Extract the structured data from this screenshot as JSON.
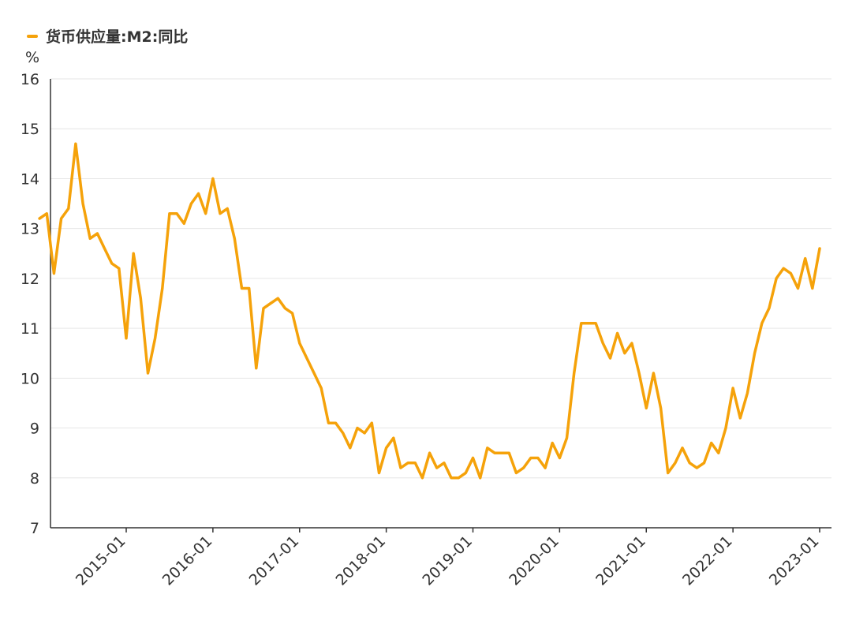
{
  "chart_data": {
    "type": "line",
    "title": "",
    "xlabel": "",
    "ylabel": "%",
    "ylim": [
      7,
      16
    ],
    "y_ticks": [
      7,
      8,
      9,
      10,
      11,
      12,
      13,
      14,
      15,
      16
    ],
    "x_ticks": [
      "2015-01",
      "2016-01",
      "2017-01",
      "2018-01",
      "2019-01",
      "2020-01",
      "2021-01",
      "2022-01",
      "2023-01"
    ],
    "legend_position": "top-left",
    "grid": true,
    "colors": {
      "line": "#f5a20a"
    },
    "series": [
      {
        "name": "货币供应量:M2:同比",
        "x": [
          "2014-01",
          "2014-02",
          "2014-03",
          "2014-04",
          "2014-05",
          "2014-06",
          "2014-07",
          "2014-08",
          "2014-09",
          "2014-10",
          "2014-11",
          "2014-12",
          "2015-01",
          "2015-02",
          "2015-03",
          "2015-04",
          "2015-05",
          "2015-06",
          "2015-07",
          "2015-08",
          "2015-09",
          "2015-10",
          "2015-11",
          "2015-12",
          "2016-01",
          "2016-02",
          "2016-03",
          "2016-04",
          "2016-05",
          "2016-06",
          "2016-07",
          "2016-08",
          "2016-09",
          "2016-10",
          "2016-11",
          "2016-12",
          "2017-01",
          "2017-02",
          "2017-03",
          "2017-04",
          "2017-05",
          "2017-06",
          "2017-07",
          "2017-08",
          "2017-09",
          "2017-10",
          "2017-11",
          "2017-12",
          "2018-01",
          "2018-02",
          "2018-03",
          "2018-04",
          "2018-05",
          "2018-06",
          "2018-07",
          "2018-08",
          "2018-09",
          "2018-10",
          "2018-11",
          "2018-12",
          "2019-01",
          "2019-02",
          "2019-03",
          "2019-04",
          "2019-05",
          "2019-06",
          "2019-07",
          "2019-08",
          "2019-09",
          "2019-10",
          "2019-11",
          "2019-12",
          "2020-01",
          "2020-02",
          "2020-03",
          "2020-04",
          "2020-05",
          "2020-06",
          "2020-07",
          "2020-08",
          "2020-09",
          "2020-10",
          "2020-11",
          "2020-12",
          "2021-01",
          "2021-02",
          "2021-03",
          "2021-04",
          "2021-05",
          "2021-06",
          "2021-07",
          "2021-08",
          "2021-09",
          "2021-10",
          "2021-11",
          "2021-12",
          "2022-01",
          "2022-02",
          "2022-03",
          "2022-04",
          "2022-05",
          "2022-06",
          "2022-07",
          "2022-08",
          "2022-09",
          "2022-10",
          "2022-11",
          "2022-12",
          "2023-01"
        ],
        "values": [
          13.2,
          13.3,
          12.1,
          13.2,
          13.4,
          14.7,
          13.5,
          12.8,
          12.9,
          12.6,
          12.3,
          12.2,
          10.8,
          12.5,
          11.6,
          10.1,
          10.8,
          11.8,
          13.3,
          13.3,
          13.1,
          13.5,
          13.7,
          13.3,
          14.0,
          13.3,
          13.4,
          12.8,
          11.8,
          11.8,
          10.2,
          11.4,
          11.5,
          11.6,
          11.4,
          11.3,
          10.7,
          10.4,
          10.1,
          9.8,
          9.1,
          9.1,
          8.9,
          8.6,
          9.0,
          8.9,
          9.1,
          8.1,
          8.6,
          8.8,
          8.2,
          8.3,
          8.3,
          8.0,
          8.5,
          8.2,
          8.3,
          8.0,
          8.0,
          8.1,
          8.4,
          8.0,
          8.6,
          8.5,
          8.5,
          8.5,
          8.1,
          8.2,
          8.4,
          8.4,
          8.2,
          8.7,
          8.4,
          8.8,
          10.1,
          11.1,
          11.1,
          11.1,
          10.7,
          10.4,
          10.9,
          10.5,
          10.7,
          10.1,
          9.4,
          10.1,
          9.4,
          8.1,
          8.3,
          8.6,
          8.3,
          8.2,
          8.3,
          8.7,
          8.5,
          9.0,
          9.8,
          9.2,
          9.7,
          10.5,
          11.1,
          11.4,
          12.0,
          12.2,
          12.1,
          11.8,
          12.4,
          11.8,
          12.6
        ]
      }
    ]
  }
}
